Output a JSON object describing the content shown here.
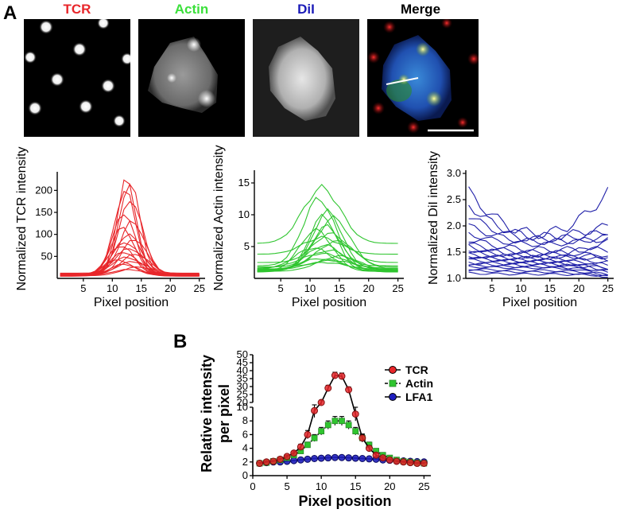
{
  "figure": {
    "panel_a_label": "A",
    "panel_b_label": "B",
    "micrograph_titles": [
      "TCR",
      "Actin",
      "DiI",
      "Merge"
    ],
    "micrograph_title_colors": [
      "#e8262a",
      "#3be03b",
      "#1b1bb8",
      "#000000"
    ]
  },
  "chart_data": [
    {
      "type": "line",
      "panel": "A",
      "xlabel": "Pixel position",
      "ylabel": "Normalized TCR intensity",
      "xticks": [
        5,
        10,
        15,
        20,
        25
      ],
      "yticks": [
        50,
        100,
        150,
        200
      ],
      "xlim": [
        0.5,
        26
      ],
      "ylim": [
        0,
        235
      ],
      "color": "#e8262a",
      "series": [
        {
          "peak": 225,
          "center": 12.5,
          "width": 2.3,
          "base": 10
        },
        {
          "peak": 220,
          "center": 13.0,
          "width": 2.5,
          "base": 8
        },
        {
          "peak": 200,
          "center": 12.2,
          "width": 2.6,
          "base": 10
        },
        {
          "peak": 180,
          "center": 13.2,
          "width": 2.8,
          "base": 12
        },
        {
          "peak": 150,
          "center": 12.0,
          "width": 2.7,
          "base": 8
        },
        {
          "peak": 130,
          "center": 13.5,
          "width": 3.0,
          "base": 10
        },
        {
          "peak": 115,
          "center": 11.8,
          "width": 2.9,
          "base": 9
        },
        {
          "peak": 100,
          "center": 12.7,
          "width": 3.2,
          "base": 8
        },
        {
          "peak": 90,
          "center": 13.8,
          "width": 3.0,
          "base": 10
        },
        {
          "peak": 82,
          "center": 12.3,
          "width": 3.4,
          "base": 7
        },
        {
          "peak": 75,
          "center": 11.5,
          "width": 3.1,
          "base": 8
        },
        {
          "peak": 68,
          "center": 13.0,
          "width": 3.6,
          "base": 9
        },
        {
          "peak": 60,
          "center": 12.0,
          "width": 3.3,
          "base": 7
        },
        {
          "peak": 55,
          "center": 14.0,
          "width": 3.5,
          "base": 8
        },
        {
          "peak": 48,
          "center": 12.5,
          "width": 3.8,
          "base": 6
        },
        {
          "peak": 42,
          "center": 11.0,
          "width": 3.4,
          "base": 7
        },
        {
          "peak": 38,
          "center": 13.5,
          "width": 4.0,
          "base": 6
        },
        {
          "peak": 32,
          "center": 12.0,
          "width": 3.6,
          "base": 5
        },
        {
          "peak": 26,
          "center": 14.5,
          "width": 3.9,
          "base": 6
        },
        {
          "peak": 20,
          "center": 12.8,
          "width": 4.2,
          "base": 5
        }
      ]
    },
    {
      "type": "line",
      "panel": "A",
      "xlabel": "Pixel position",
      "ylabel": "Normalized Actin intensity",
      "xticks": [
        5,
        10,
        15,
        20,
        25
      ],
      "yticks": [
        5,
        10,
        15
      ],
      "xlim": [
        0.5,
        26
      ],
      "ylim": [
        0,
        16.5
      ],
      "color": "#2fc52f",
      "series": [
        {
          "peak": 14.2,
          "center": 12.0,
          "width": 4.5,
          "base": 5.5
        },
        {
          "peak": 12.5,
          "center": 11.5,
          "width": 3.8,
          "base": 2.0
        },
        {
          "peak": 10.5,
          "center": 13.0,
          "width": 3.5,
          "base": 1.5
        },
        {
          "peak": 9.8,
          "center": 12.2,
          "width": 3.3,
          "base": 1.2
        },
        {
          "peak": 9.5,
          "center": 14.0,
          "width": 4.0,
          "base": 1.8
        },
        {
          "peak": 8.2,
          "center": 12.8,
          "width": 3.6,
          "base": 1.3
        },
        {
          "peak": 7.6,
          "center": 11.0,
          "width": 3.9,
          "base": 1.1
        },
        {
          "peak": 7.0,
          "center": 13.5,
          "width": 4.2,
          "base": 2.5
        },
        {
          "peak": 6.4,
          "center": 12.0,
          "width": 4.5,
          "base": 3.8
        },
        {
          "peak": 5.8,
          "center": 14.5,
          "width": 4.8,
          "base": 1.4
        },
        {
          "peak": 5.2,
          "center": 12.5,
          "width": 4.6,
          "base": 1.0
        },
        {
          "peak": 4.8,
          "center": 10.5,
          "width": 4.3,
          "base": 1.5
        },
        {
          "peak": 4.4,
          "center": 13.2,
          "width": 5.0,
          "base": 1.2
        },
        {
          "peak": 3.9,
          "center": 12.0,
          "width": 5.2,
          "base": 1.6
        },
        {
          "peak": 3.5,
          "center": 15.0,
          "width": 5.0,
          "base": 1.1
        },
        {
          "peak": 3.1,
          "center": 11.8,
          "width": 5.4,
          "base": 1.0
        },
        {
          "peak": 2.8,
          "center": 13.8,
          "width": 5.6,
          "base": 1.3
        },
        {
          "peak": 2.5,
          "center": 12.3,
          "width": 6.0,
          "base": 1.2
        }
      ]
    },
    {
      "type": "line",
      "panel": "A",
      "xlabel": "Pixel position",
      "ylabel": "Normalized DiI intensity",
      "xticks": [
        5,
        10,
        15,
        20,
        25
      ],
      "yticks": [
        "1.0",
        "1.5",
        "2.0",
        "2.5",
        "3.0"
      ],
      "xlim": [
        0.5,
        26
      ],
      "ylim": [
        1.0,
        3.0
      ],
      "color": "#1f1fa8",
      "series": [
        {
          "start": 2.65,
          "mid": 1.85,
          "end": 2.65,
          "wobble": 0.1
        },
        {
          "start": 2.4,
          "mid": 1.8,
          "end": 2.0,
          "wobble": 0.08
        },
        {
          "start": 2.2,
          "mid": 1.75,
          "end": 1.9,
          "wobble": 0.07
        },
        {
          "start": 2.0,
          "mid": 1.7,
          "end": 1.75,
          "wobble": 0.06
        },
        {
          "start": 1.85,
          "mid": 1.65,
          "end": 1.8,
          "wobble": 0.05
        },
        {
          "start": 1.75,
          "mid": 1.55,
          "end": 1.55,
          "wobble": 0.06
        },
        {
          "start": 1.65,
          "mid": 1.5,
          "end": 1.4,
          "wobble": 0.05
        },
        {
          "start": 1.6,
          "mid": 1.45,
          "end": 1.7,
          "wobble": 0.05
        },
        {
          "start": 1.55,
          "mid": 1.42,
          "end": 1.35,
          "wobble": 0.04
        },
        {
          "start": 1.5,
          "mid": 1.4,
          "end": 1.45,
          "wobble": 0.04
        },
        {
          "start": 1.45,
          "mid": 1.38,
          "end": 1.3,
          "wobble": 0.04
        },
        {
          "start": 1.42,
          "mid": 1.35,
          "end": 1.25,
          "wobble": 0.03
        },
        {
          "start": 1.4,
          "mid": 1.32,
          "end": 1.2,
          "wobble": 0.03
        },
        {
          "start": 1.35,
          "mid": 1.3,
          "end": 1.15,
          "wobble": 0.03
        },
        {
          "start": 1.3,
          "mid": 1.28,
          "end": 1.1,
          "wobble": 0.03
        },
        {
          "start": 1.28,
          "mid": 1.25,
          "end": 1.2,
          "wobble": 0.03
        },
        {
          "start": 1.25,
          "mid": 1.22,
          "end": 1.05,
          "wobble": 0.02
        },
        {
          "start": 1.22,
          "mid": 1.2,
          "end": 1.15,
          "wobble": 0.02
        },
        {
          "start": 1.18,
          "mid": 1.15,
          "end": 1.08,
          "wobble": 0.02
        },
        {
          "start": 1.15,
          "mid": 1.12,
          "end": 1.03,
          "wobble": 0.02
        },
        {
          "start": 1.1,
          "mid": 1.08,
          "end": 1.05,
          "wobble": 0.02
        }
      ]
    },
    {
      "type": "line",
      "panel": "B",
      "xlabel": "Pixel position",
      "ylabel": "Relative intensity per pixel",
      "xticks": [
        0,
        5,
        10,
        15,
        20,
        25
      ],
      "yticks_lower": [
        0,
        2,
        4,
        6,
        8,
        10
      ],
      "yticks_upper": [
        20,
        25,
        30,
        35,
        40,
        45,
        50
      ],
      "axis_break": true,
      "legend_position": "top-right",
      "x": [
        1,
        2,
        3,
        4,
        5,
        6,
        7,
        8,
        9,
        10,
        11,
        12,
        13,
        14,
        15,
        16,
        17,
        18,
        19,
        20,
        21,
        22,
        23,
        24,
        25
      ],
      "series": [
        {
          "name": "TCR",
          "color": "#e8262a",
          "values": [
            1.8,
            2.0,
            2.1,
            2.4,
            2.8,
            3.3,
            4.2,
            6.0,
            9.5,
            20.0,
            29.0,
            37.0,
            36.5,
            28.0,
            9.0,
            5.5,
            4.0,
            3.0,
            2.6,
            2.3,
            2.1,
            2.0,
            1.9,
            1.8,
            1.8
          ],
          "errors": [
            0.1,
            0.1,
            0.1,
            0.15,
            0.2,
            0.3,
            0.4,
            0.6,
            1.0,
            1.5,
            1.8,
            2.0,
            2.0,
            1.8,
            1.0,
            0.6,
            0.4,
            0.3,
            0.2,
            0.15,
            0.1,
            0.1,
            0.1,
            0.1,
            0.1
          ]
        },
        {
          "name": "Actin",
          "color": "#2fc52f",
          "values": [
            1.8,
            1.9,
            2.1,
            2.3,
            2.6,
            3.0,
            3.6,
            4.5,
            5.5,
            6.5,
            7.4,
            8.0,
            8.0,
            7.4,
            6.5,
            5.5,
            4.5,
            3.6,
            3.0,
            2.6,
            2.3,
            2.1,
            2.0,
            1.9,
            1.8
          ],
          "errors": [
            0.1,
            0.1,
            0.1,
            0.15,
            0.2,
            0.3,
            0.35,
            0.4,
            0.5,
            0.55,
            0.6,
            0.65,
            0.65,
            0.6,
            0.55,
            0.5,
            0.4,
            0.35,
            0.3,
            0.2,
            0.15,
            0.1,
            0.1,
            0.1,
            0.1
          ]
        },
        {
          "name": "LFA1",
          "color": "#1f1fbf",
          "values": [
            1.8,
            1.9,
            2.0,
            2.0,
            2.1,
            2.2,
            2.3,
            2.4,
            2.5,
            2.55,
            2.6,
            2.65,
            2.65,
            2.6,
            2.55,
            2.5,
            2.45,
            2.4,
            2.3,
            2.25,
            2.2,
            2.15,
            2.1,
            2.05,
            2.0
          ],
          "errors": [
            0.05,
            0.05,
            0.05,
            0.05,
            0.05,
            0.05,
            0.05,
            0.05,
            0.05,
            0.05,
            0.05,
            0.05,
            0.05,
            0.05,
            0.05,
            0.05,
            0.05,
            0.05,
            0.05,
            0.05,
            0.05,
            0.05,
            0.05,
            0.05,
            0.05
          ]
        }
      ]
    }
  ]
}
